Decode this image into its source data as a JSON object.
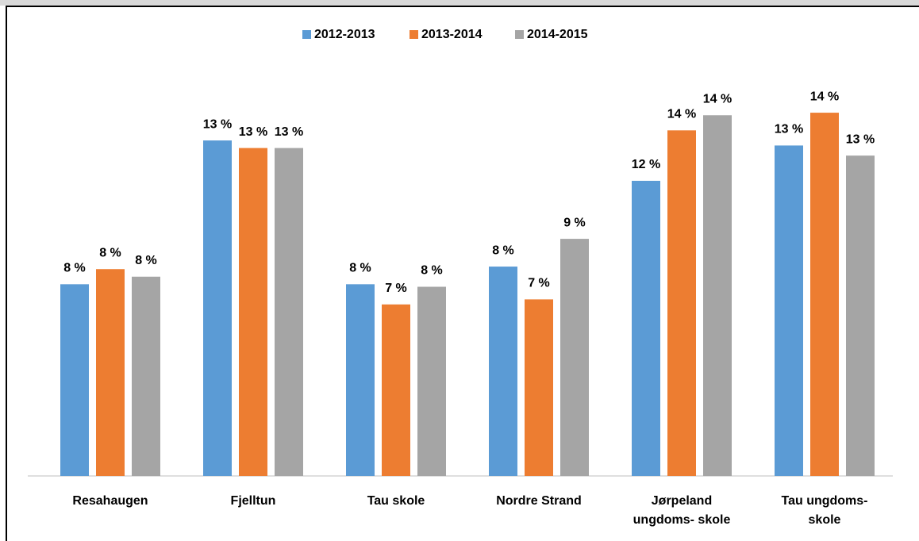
{
  "chart_data": {
    "type": "bar",
    "categories": [
      "Resahaugen",
      "Fjelltun",
      "Tau skole",
      "Nordre Strand",
      "Jørpeland\nungdoms- skole",
      "Tau ungdoms-\nskole"
    ],
    "series": [
      {
        "name": "2012-2013",
        "color": "#5b9bd5",
        "values": [
          7.6,
          13.3,
          7.6,
          8.3,
          11.7,
          13.1
        ],
        "value_labels": [
          "8 %",
          "13 %",
          "8 %",
          "8 %",
          "12 %",
          "13 %"
        ]
      },
      {
        "name": "2013-2014",
        "color": "#ed7d31",
        "values": [
          8.2,
          13.0,
          6.8,
          7.0,
          13.7,
          14.4
        ],
        "value_labels": [
          "8 %",
          "13 %",
          "7 %",
          "7 %",
          "14 %",
          "14 %"
        ]
      },
      {
        "name": "2014-2015",
        "color": "#a5a5a5",
        "values": [
          7.9,
          13.0,
          7.5,
          9.4,
          14.3,
          12.7
        ],
        "value_labels": [
          "8 %",
          "13 %",
          "8 %",
          "9 %",
          "14 %",
          "13 %"
        ]
      }
    ],
    "ylim": [
      0,
      18
    ],
    "legend": "top"
  }
}
